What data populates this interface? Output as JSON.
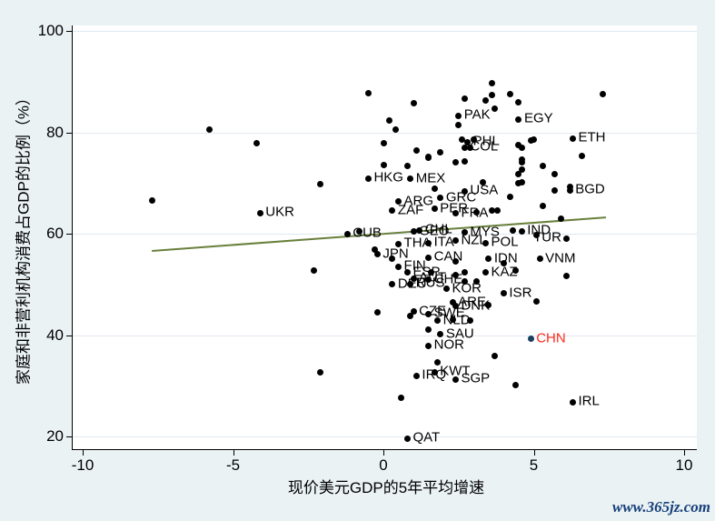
{
  "figure": {
    "watermark": "www.365jz.com",
    "background_color": "#EAF2F3",
    "plot_background_color": "#FFFFFF",
    "gridline_color": "#E0E9F1"
  },
  "chart_data": {
    "type": "scatter",
    "title": "",
    "xlabel": "现价美元GDP的5年平均增速",
    "ylabel": "家庭和非营利机构消费占GDP的比例（%）",
    "xlim": [
      -10,
      10
    ],
    "ylim": [
      17.5,
      101
    ],
    "x_ticks": [
      "-10",
      "-5",
      "0",
      "5",
      "10"
    ],
    "x_tick_values": [
      -10,
      -5,
      0,
      5,
      10
    ],
    "y_ticks": [
      "20",
      "40",
      "60",
      "80",
      "100"
    ],
    "y_tick_values": [
      20,
      40,
      60,
      80,
      100
    ],
    "grid": "horizontal",
    "legend": "none",
    "dot_color": "#000000",
    "trend_line": {
      "x1": -7.7,
      "y1": 56.6,
      "x2": 7.4,
      "y2": 63.2,
      "color": "#69803C",
      "width": 2
    },
    "highlight": {
      "label": "CHN",
      "dot_color": "#1A3F5F",
      "label_color": "#FF2A1A"
    },
    "points": [
      {
        "x": 2.5,
        "y": 83.3,
        "label": "PAK"
      },
      {
        "x": 4.5,
        "y": 82.6,
        "label": "EGY"
      },
      {
        "x": 6.3,
        "y": 78.8,
        "label": "ETH"
      },
      {
        "x": 6.2,
        "y": 68.6,
        "label": "BGD"
      },
      {
        "x": -4.1,
        "y": 64.1,
        "label": "UKR"
      },
      {
        "x": -0.5,
        "y": 70.9,
        "label": "HKG"
      },
      {
        "x": 0.9,
        "y": 70.8,
        "label": "MEX"
      },
      {
        "x": 2.7,
        "y": 77.0,
        "label": "COL"
      },
      {
        "x": 2.8,
        "y": 78.1,
        "label": "PHL"
      },
      {
        "x": 1.9,
        "y": 67.0,
        "label": "GRC"
      },
      {
        "x": 2.7,
        "y": 68.4,
        "label": "USA"
      },
      {
        "x": 0.5,
        "y": 66.3,
        "label": "ARG"
      },
      {
        "x": 0.3,
        "y": 64.5,
        "label": "ZAF"
      },
      {
        "x": 1.7,
        "y": 64.9,
        "label": "PER"
      },
      {
        "x": 2.4,
        "y": 64.0,
        "label": "FRA"
      },
      {
        "x": -1.2,
        "y": 60.0,
        "label": "CUB"
      },
      {
        "x": 1.0,
        "y": 60.4,
        "label": "GEO"
      },
      {
        "x": 1.2,
        "y": 60.7,
        "label": "CHL"
      },
      {
        "x": 2.7,
        "y": 60.2,
        "label": "MYS"
      },
      {
        "x": 4.6,
        "y": 60.5,
        "label": "IND"
      },
      {
        "x": 6.1,
        "y": 59.1,
        "label": "TUR",
        "label_pos": "left"
      },
      {
        "x": 0.5,
        "y": 58.0,
        "label": "THA"
      },
      {
        "x": 1.5,
        "y": 58.2,
        "label": "ITA"
      },
      {
        "x": 2.4,
        "y": 58.6,
        "label": "NZL"
      },
      {
        "x": 3.4,
        "y": 58.2,
        "label": "POL"
      },
      {
        "x": -0.2,
        "y": 55.9,
        "label": "JPN"
      },
      {
        "x": 1.5,
        "y": 55.3,
        "label": "CAN"
      },
      {
        "x": 3.5,
        "y": 55.0,
        "label": "IDN"
      },
      {
        "x": 5.2,
        "y": 55.0,
        "label": "VNM"
      },
      {
        "x": 0.5,
        "y": 53.5,
        "label": "FIN"
      },
      {
        "x": 0.8,
        "y": 52.3,
        "label": "ESP"
      },
      {
        "x": 1.0,
        "y": 51.2,
        "label": "AUT"
      },
      {
        "x": 1.5,
        "y": 50.9,
        "label": "CHE"
      },
      {
        "x": 3.4,
        "y": 52.3,
        "label": "KAZ"
      },
      {
        "x": 0.3,
        "y": 50.0,
        "label": "DEU"
      },
      {
        "x": 0.9,
        "y": 50.1,
        "label": "RUS"
      },
      {
        "x": 2.1,
        "y": 49.1,
        "label": "KOR"
      },
      {
        "x": 4.0,
        "y": 48.2,
        "label": "ISR"
      },
      {
        "x": 2.3,
        "y": 46.4,
        "label": "ARE"
      },
      {
        "x": 2.4,
        "y": 45.7,
        "label": "DNK"
      },
      {
        "x": 1.0,
        "y": 44.6,
        "label": "CZE"
      },
      {
        "x": 1.5,
        "y": 44.2,
        "label": "SWE"
      },
      {
        "x": 1.8,
        "y": 42.8,
        "label": "NLD"
      },
      {
        "x": 1.9,
        "y": 40.1,
        "label": "SAU"
      },
      {
        "x": 1.5,
        "y": 37.9,
        "label": "NOR"
      },
      {
        "x": 4.9,
        "y": 39.2,
        "label": "CHN",
        "highlight": true
      },
      {
        "x": 1.7,
        "y": 32.7,
        "label": "KWT"
      },
      {
        "x": 1.1,
        "y": 32.0,
        "label": "IRQ"
      },
      {
        "x": 2.4,
        "y": 31.3,
        "label": "SGP"
      },
      {
        "x": 6.3,
        "y": 26.8,
        "label": "IRL"
      },
      {
        "x": 0.8,
        "y": 19.6,
        "label": "QAT"
      },
      {
        "x": -0.5,
        "y": 87.8
      },
      {
        "x": 1.0,
        "y": 85.7
      },
      {
        "x": 0.2,
        "y": 82.4
      },
      {
        "x": 0.4,
        "y": 80.5
      },
      {
        "x": 2.7,
        "y": 86.7
      },
      {
        "x": 3.4,
        "y": 86.2
      },
      {
        "x": 3.6,
        "y": 89.6
      },
      {
        "x": 3.6,
        "y": 87.4
      },
      {
        "x": 4.2,
        "y": 87.6
      },
      {
        "x": 4.5,
        "y": 86.0
      },
      {
        "x": 7.3,
        "y": 87.6
      },
      {
        "x": 2.5,
        "y": 81.5
      },
      {
        "x": 3.7,
        "y": 84.6
      },
      {
        "x": -5.8,
        "y": 80.6
      },
      {
        "x": -4.2,
        "y": 77.9
      },
      {
        "x": -2.1,
        "y": 69.7
      },
      {
        "x": -7.7,
        "y": 66.6
      },
      {
        "x": 5.0,
        "y": 78.5
      },
      {
        "x": 4.6,
        "y": 77.0
      },
      {
        "x": 6.6,
        "y": 75.4
      },
      {
        "x": 4.6,
        "y": 74.0
      },
      {
        "x": 5.3,
        "y": 73.3
      },
      {
        "x": 5.7,
        "y": 71.7
      },
      {
        "x": 4.5,
        "y": 71.8
      },
      {
        "x": 4.6,
        "y": 70.2
      },
      {
        "x": 4.2,
        "y": 67.2
      },
      {
        "x": 5.7,
        "y": 68.6
      },
      {
        "x": 6.2,
        "y": 69.3
      },
      {
        "x": 5.3,
        "y": 65.4
      },
      {
        "x": 5.9,
        "y": 62.9
      },
      {
        "x": 4.3,
        "y": 60.7
      },
      {
        "x": 6.1,
        "y": 51.7
      },
      {
        "x": 0.0,
        "y": 77.9
      },
      {
        "x": 1.1,
        "y": 76.5
      },
      {
        "x": 1.9,
        "y": 76.0
      },
      {
        "x": 2.4,
        "y": 74.0
      },
      {
        "x": 2.7,
        "y": 74.3
      },
      {
        "x": 0.0,
        "y": 73.5
      },
      {
        "x": 0.8,
        "y": 73.3
      },
      {
        "x": 1.5,
        "y": 74.9
      },
      {
        "x": 2.9,
        "y": 76.9
      },
      {
        "x": 3.0,
        "y": 78.5
      },
      {
        "x": 2.6,
        "y": 78.5
      },
      {
        "x": 1.5,
        "y": 75.1
      },
      {
        "x": 4.5,
        "y": 77.4
      },
      {
        "x": 4.9,
        "y": 78.3
      },
      {
        "x": 4.6,
        "y": 74.7
      },
      {
        "x": 4.6,
        "y": 72.6
      },
      {
        "x": 4.5,
        "y": 69.9
      },
      {
        "x": 3.3,
        "y": 70.2
      },
      {
        "x": 1.7,
        "y": 68.8
      },
      {
        "x": -0.8,
        "y": 60.4
      },
      {
        "x": -2.3,
        "y": 52.8
      },
      {
        "x": -0.2,
        "y": 44.4
      },
      {
        "x": -2.1,
        "y": 32.6
      },
      {
        "x": 3.6,
        "y": 64.5
      },
      {
        "x": 3.8,
        "y": 64.5
      },
      {
        "x": 3.1,
        "y": 64.3
      },
      {
        "x": -0.3,
        "y": 56.8
      },
      {
        "x": 5.1,
        "y": 59.8
      },
      {
        "x": 0.3,
        "y": 55.0
      },
      {
        "x": 2.4,
        "y": 54.6
      },
      {
        "x": 4.0,
        "y": 54.1
      },
      {
        "x": 4.4,
        "y": 52.8
      },
      {
        "x": 1.6,
        "y": 52.3
      },
      {
        "x": 2.4,
        "y": 51.9
      },
      {
        "x": 2.7,
        "y": 52.3
      },
      {
        "x": 2.7,
        "y": 50.5
      },
      {
        "x": 3.1,
        "y": 50.5
      },
      {
        "x": 5.1,
        "y": 46.6
      },
      {
        "x": 0.9,
        "y": 43.7
      },
      {
        "x": 3.5,
        "y": 46.0
      },
      {
        "x": 2.3,
        "y": 43.0
      },
      {
        "x": 2.9,
        "y": 42.8
      },
      {
        "x": 1.5,
        "y": 41.0
      },
      {
        "x": 3.7,
        "y": 35.8
      },
      {
        "x": 1.8,
        "y": 34.7
      },
      {
        "x": 4.4,
        "y": 30.2
      },
      {
        "x": 0.6,
        "y": 27.7
      }
    ]
  }
}
